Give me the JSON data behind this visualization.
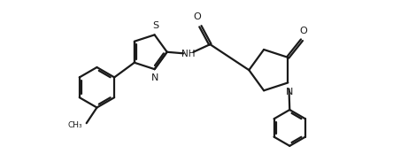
{
  "bg_color": "#ffffff",
  "line_color": "#1a1a1a",
  "line_width": 1.6,
  "figsize": [
    4.7,
    1.74
  ],
  "dpi": 100,
  "xlim": [
    0,
    10
  ],
  "ylim": [
    -2.2,
    2.2
  ]
}
